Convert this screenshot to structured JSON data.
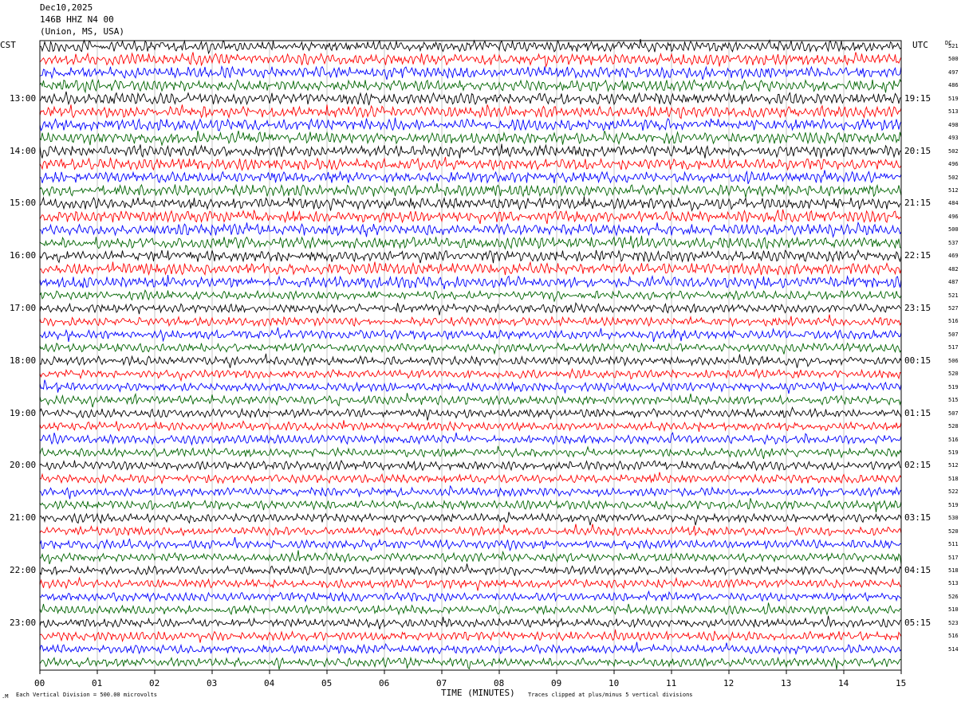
{
  "header": {
    "date": "Dec10,2025",
    "station": "146B HHZ N4 00",
    "location": "(Union, MS, USA)"
  },
  "left_tz": "CST",
  "right_tz": "UTC",
  "dc_label": "DC",
  "footer": {
    "marker": ".M",
    "scale": "Each Vertical Division =  500.00 microvolts",
    "clip_note": "Traces clipped at plus/minus 5 vertical divisions"
  },
  "colors": {
    "trace_cycle": [
      "#000000",
      "#ff0000",
      "#0000ff",
      "#006400"
    ],
    "grid": "#a0a0a0"
  },
  "chart_data": {
    "type": "line",
    "title": "",
    "xlabel": "TIME (MINUTES)",
    "ylabel": "",
    "x_ticks": [
      "00",
      "01",
      "02",
      "03",
      "04",
      "05",
      "06",
      "07",
      "08",
      "09",
      "10",
      "11",
      "12",
      "13",
      "14",
      "15"
    ],
    "xlim": [
      0,
      15
    ],
    "rows": 48,
    "grid": true,
    "left_hour_labels": [
      "13:00",
      "14:00",
      "15:00",
      "16:00",
      "17:00",
      "18:00",
      "19:00",
      "20:00",
      "21:00",
      "22:00",
      "23:00"
    ],
    "right_hour_labels": [
      "19:15",
      "20:15",
      "21:15",
      "22:15",
      "23:15",
      "00:15",
      "01:15",
      "02:15",
      "03:15",
      "04:15",
      "05:15"
    ],
    "dc_offsets": [
      "521",
      "500",
      "497",
      "486",
      "519",
      "513",
      "498",
      "493",
      "502",
      "496",
      "502",
      "512",
      "484",
      "496",
      "500",
      "537",
      "469",
      "482",
      "487",
      "521",
      "527",
      "516",
      "507",
      "517",
      "506",
      "520",
      "519",
      "515",
      "507",
      "528",
      "516",
      "519",
      "512",
      "518",
      "522",
      "519",
      "530",
      "520",
      "511",
      "517",
      "518",
      "513",
      "526",
      "510",
      "523",
      "516",
      "514"
    ]
  }
}
